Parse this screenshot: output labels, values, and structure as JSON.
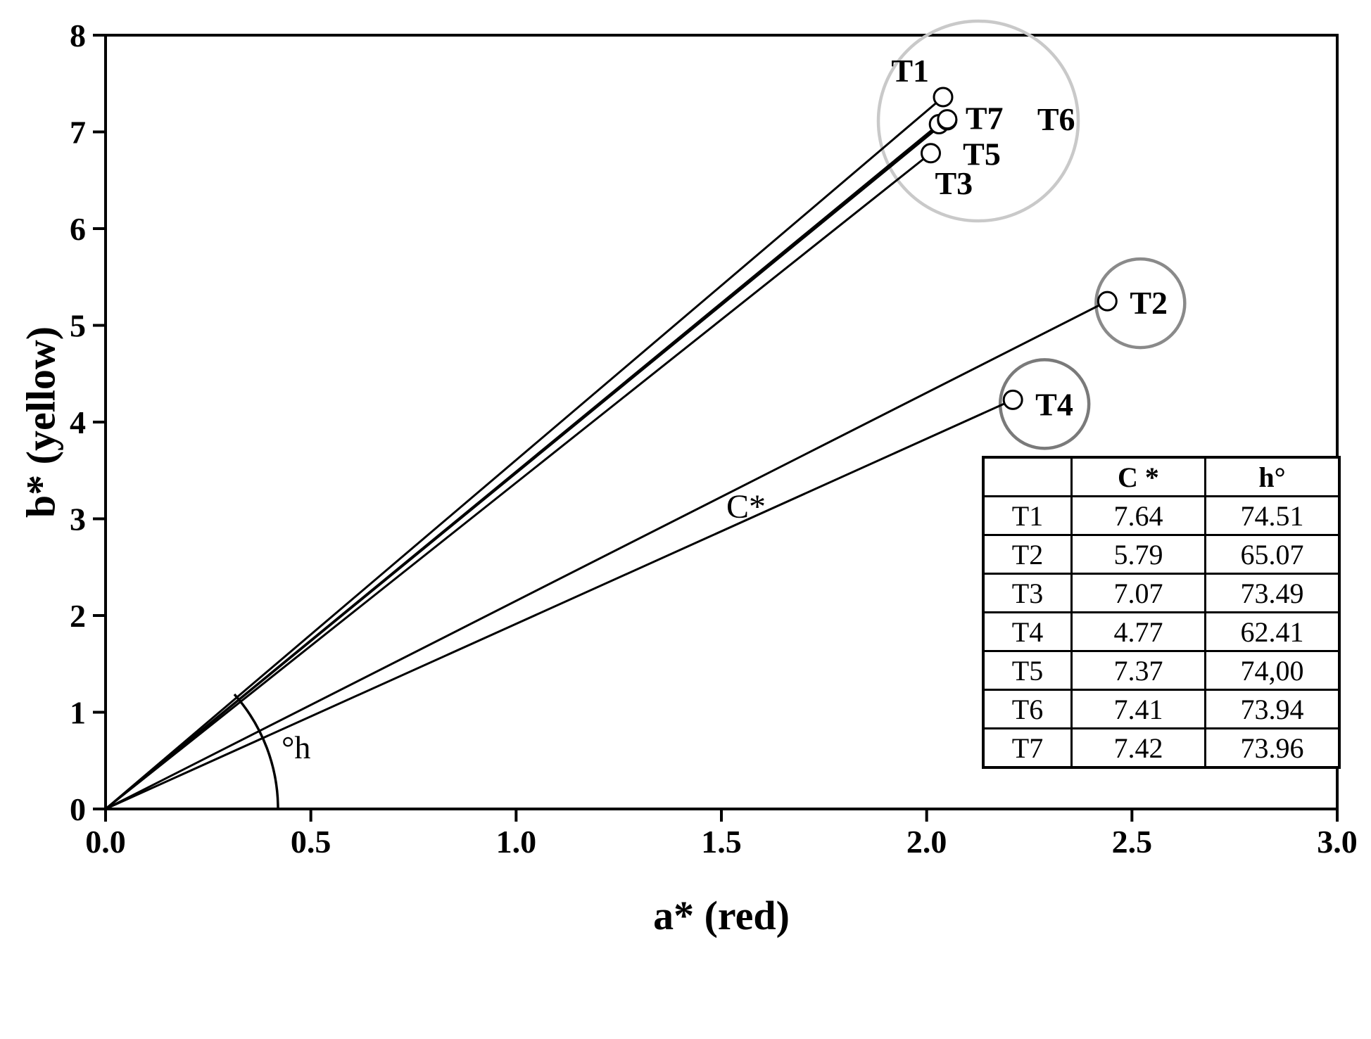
{
  "figure": {
    "background": "#ffffff",
    "axis_color": "#000000",
    "line_color": "#000000",
    "marker_fill": "#ffffff",
    "cluster_circle_color": "#c9c9c9",
    "t2_circle_color": "#8a8a8a",
    "t4_circle_color": "#7a7a7a"
  },
  "chart_data": {
    "type": "scatter",
    "title": "",
    "xlabel": "a* (red)",
    "ylabel": "b* (yellow)",
    "xlim": [
      0.0,
      3.0
    ],
    "ylim": [
      0,
      8
    ],
    "grid": false,
    "x_ticks": [
      0.0,
      0.5,
      1.0,
      1.5,
      2.0,
      2.5,
      3.0
    ],
    "x_tick_labels": [
      "0.0",
      "0.5",
      "1.0",
      "1.5",
      "2.0",
      "2.5",
      "3.0"
    ],
    "y_ticks": [
      0,
      1,
      2,
      3,
      4,
      5,
      6,
      7,
      8
    ],
    "y_tick_labels": [
      "0",
      "1",
      "2",
      "3",
      "4",
      "5",
      "6",
      "7",
      "8"
    ],
    "description": "Chroma vectors from the origin to each treatment point in CIELAB a*-b* space, with hue angle arc and grouping circles",
    "series": [
      {
        "name": "T1",
        "a_star": 2.04,
        "b_star": 7.36
      },
      {
        "name": "T2",
        "a_star": 2.44,
        "b_star": 5.25
      },
      {
        "name": "T3",
        "a_star": 2.01,
        "b_star": 6.78
      },
      {
        "name": "T4",
        "a_star": 2.21,
        "b_star": 4.23
      },
      {
        "name": "T5",
        "a_star": 2.03,
        "b_star": 7.08
      },
      {
        "name": "T6",
        "a_star": 2.05,
        "b_star": 7.12
      },
      {
        "name": "T7",
        "a_star": 2.05,
        "b_star": 7.13
      }
    ],
    "annotations": {
      "chroma": "C*",
      "hue_angle": "°h"
    },
    "table": {
      "headers": [
        "",
        "C *",
        "h°"
      ],
      "rows": [
        [
          "T1",
          "7.64",
          "74.51"
        ],
        [
          "T2",
          "5.79",
          "65.07"
        ],
        [
          "T3",
          "7.07",
          "73.49"
        ],
        [
          "T4",
          "4.77",
          "62.41"
        ],
        [
          "T5",
          "7.37",
          "74,00"
        ],
        [
          "T6",
          "7.41",
          "73.94"
        ],
        [
          "T7",
          "7.42",
          "73.96"
        ]
      ]
    }
  }
}
